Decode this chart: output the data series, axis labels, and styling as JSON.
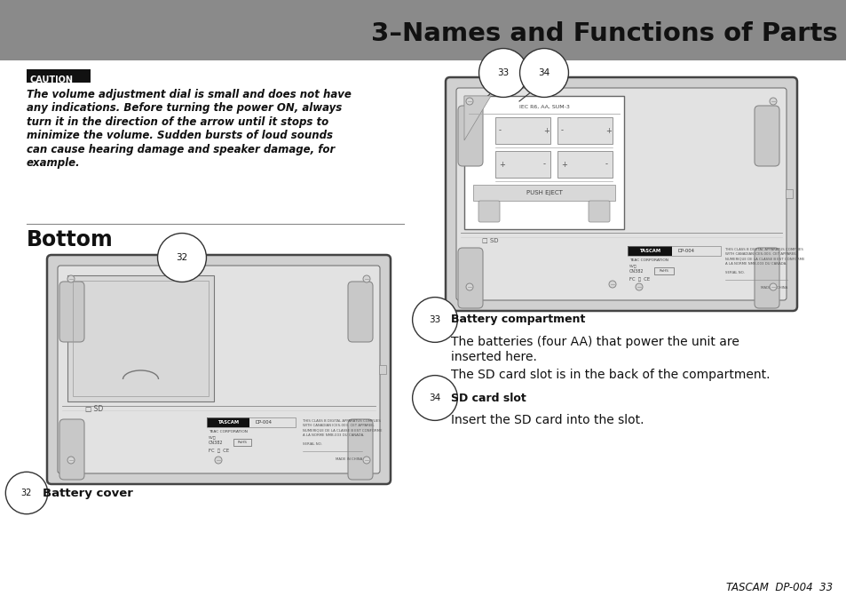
{
  "bg_color": "#ffffff",
  "header_bg": "#8a8a8a",
  "header_text": "3–Names and Functions of Parts",
  "header_text_color": "#111111",
  "caution_label": "CAUTION",
  "caution_label_bg": "#111111",
  "caution_label_color": "#ffffff",
  "caution_text_line1": "The volume adjustment dial is small and does not have",
  "caution_text_line2": "any indications. Before turning the power ON, always",
  "caution_text_line3": "turn it in the direction of the arrow until it stops to",
  "caution_text_line4": "minimize the volume. Sudden bursts of loud sounds",
  "caution_text_line5": "can cause hearing damage and speaker damage, for",
  "caution_text_line6": "example.",
  "section_title": "Bottom",
  "item32_desc": "Battery cover",
  "item33_title": "Battery compartment",
  "item33_text1": "The batteries (four AA) that power the unit are",
  "item33_text2": "inserted here.",
  "item33_text3": "The SD card slot is in the back of the compartment.",
  "item34_title": "SD card slot",
  "item34_text": "Insert the SD card into the slot.",
  "footer_text": "TASCAM  DP-004  33",
  "divider_color": "#888888",
  "text_color": "#111111",
  "device_outer": "#cccccc",
  "device_inner": "#e8e8e8",
  "device_border": "#555555"
}
